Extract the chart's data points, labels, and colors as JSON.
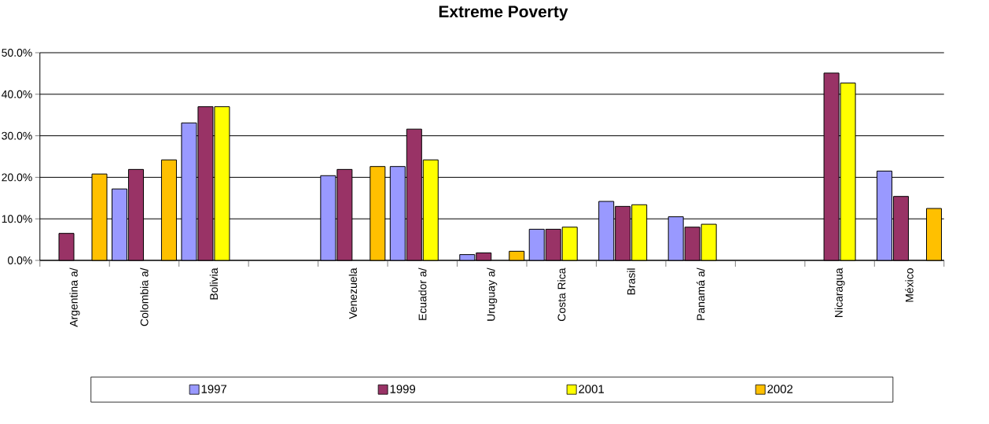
{
  "chart_data": {
    "type": "bar",
    "title": "Extreme Poverty",
    "categories": [
      "Argentina a/",
      "Colombia a/",
      "Bolivia",
      null,
      "Venezuela",
      "Ecuador a/",
      "Uruguay a/",
      "Costa Rica",
      "Brasil",
      "Panamá a/",
      null,
      "Nicaragua",
      "México"
    ],
    "series": [
      {
        "name": "1997",
        "color": "#9999ff",
        "values": [
          null,
          17.2,
          33.1,
          null,
          20.4,
          22.6,
          1.4,
          7.5,
          14.2,
          10.5,
          null,
          null,
          21.5
        ]
      },
      {
        "name": "1999",
        "color": "#993366",
        "values": [
          6.5,
          21.9,
          37.0,
          null,
          21.9,
          31.6,
          1.8,
          7.5,
          13.0,
          8.0,
          null,
          45.1,
          15.4
        ]
      },
      {
        "name": "2001",
        "color": "#ffff00",
        "values": [
          null,
          null,
          37.0,
          null,
          null,
          24.2,
          null,
          8.0,
          13.4,
          8.7,
          null,
          42.7,
          null
        ]
      },
      {
        "name": "2002",
        "color": "#ffc000",
        "values": [
          20.8,
          24.2,
          null,
          null,
          22.6,
          null,
          2.2,
          null,
          null,
          null,
          null,
          null,
          12.5
        ]
      }
    ],
    "ylim": [
      0,
      50
    ],
    "yticks": [
      {
        "value": 0,
        "label": "0.0%"
      },
      {
        "value": 10,
        "label": "10.0%"
      },
      {
        "value": 20,
        "label": "20.0%"
      },
      {
        "value": 30,
        "label": "30.0%"
      },
      {
        "value": 40,
        "label": "40.0%"
      },
      {
        "value": 50,
        "label": "50.0%"
      }
    ],
    "grid": "y",
    "legend": "bottom"
  }
}
